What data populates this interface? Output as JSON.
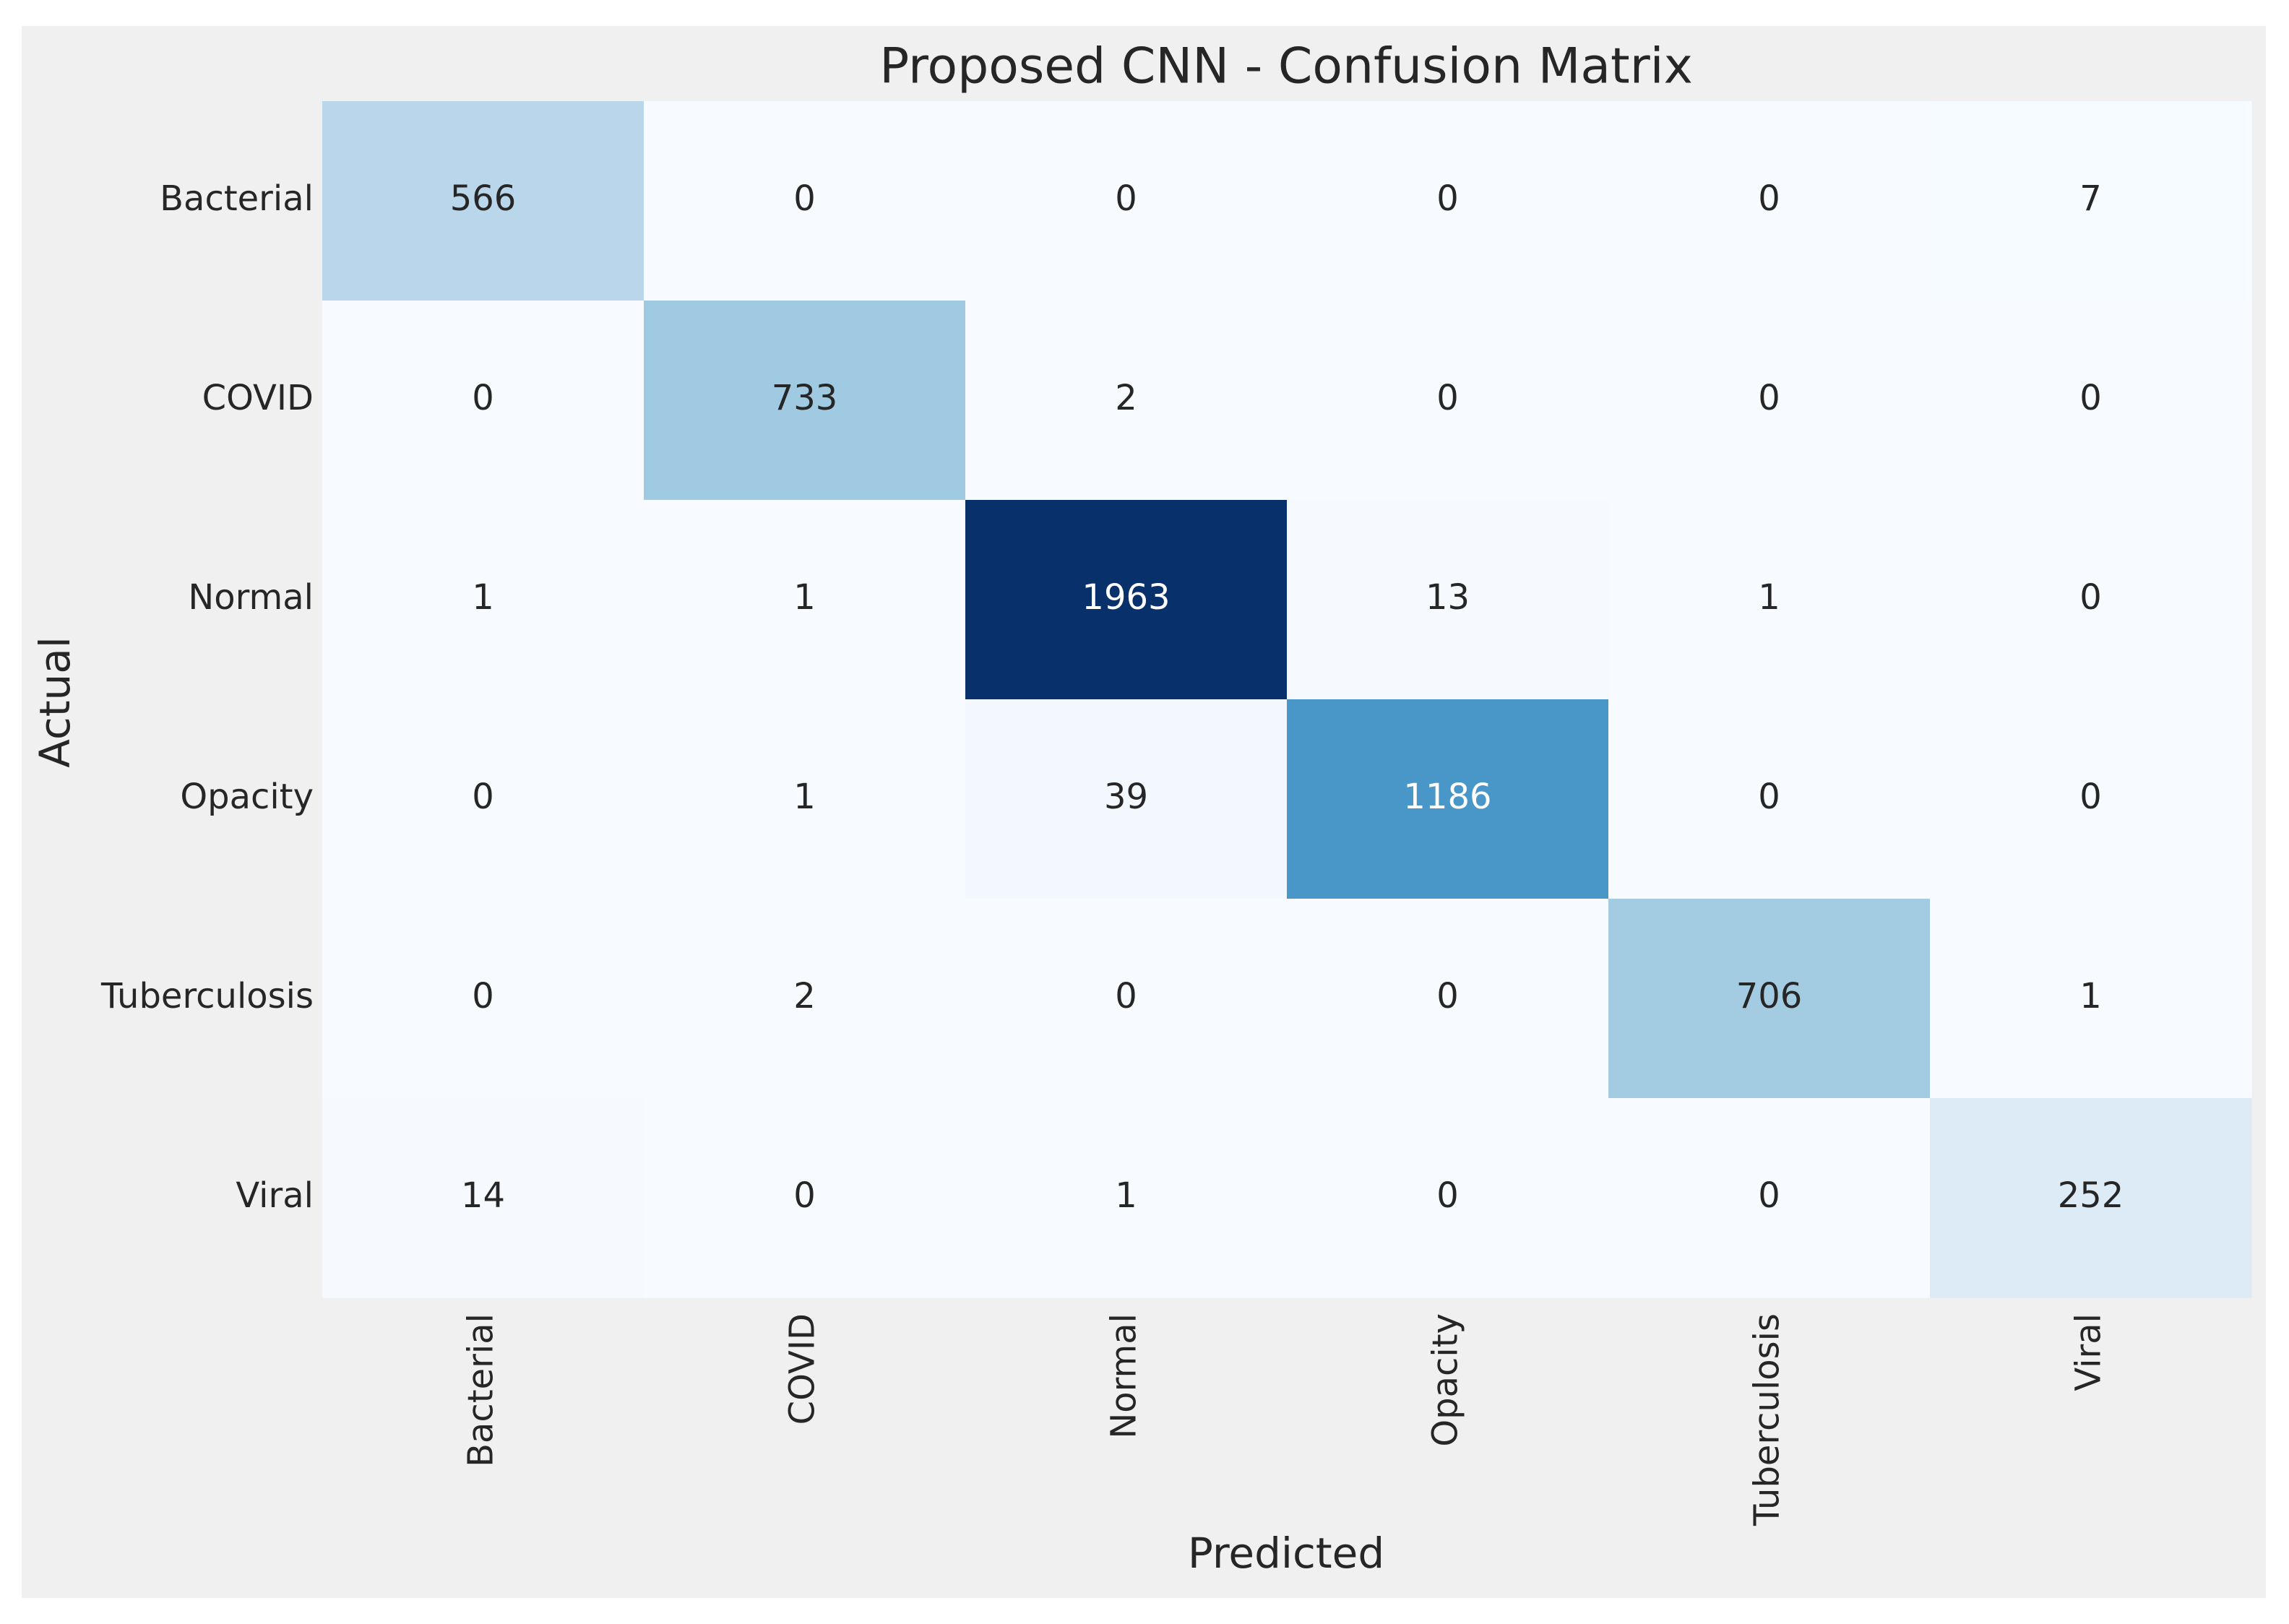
{
  "chart_data": {
    "type": "heatmap",
    "title": "Proposed CNN - Confusion Matrix",
    "xlabel": "Predicted",
    "ylabel": "Actual",
    "row_labels": [
      "Bacterial",
      "COVID",
      "Normal",
      "Opacity",
      "Tuberculosis",
      "Viral"
    ],
    "col_labels": [
      "Bacterial",
      "COVID",
      "Normal",
      "Opacity",
      "Tuberculosis",
      "Viral"
    ],
    "matrix": [
      [
        566,
        0,
        0,
        0,
        0,
        7
      ],
      [
        0,
        733,
        2,
        0,
        0,
        0
      ],
      [
        1,
        1,
        1963,
        13,
        1,
        0
      ],
      [
        0,
        1,
        39,
        1186,
        0,
        0
      ],
      [
        0,
        2,
        0,
        0,
        706,
        1
      ],
      [
        14,
        0,
        1,
        0,
        0,
        252
      ]
    ],
    "vmin": 0,
    "vmax": 1963,
    "colormap": "Blues",
    "colorbar": false,
    "grid": false
  },
  "colors": {
    "page_background": "#ffffff",
    "axes_background": "#f0f0f0",
    "text": "#262626",
    "light_annotation": "#ffffff",
    "blues_scale": [
      "#f7fbff",
      "#deebf7",
      "#c6dbef",
      "#9ecae1",
      "#6baed6",
      "#4292c6",
      "#2171b5",
      "#08519c",
      "#08306b"
    ]
  }
}
